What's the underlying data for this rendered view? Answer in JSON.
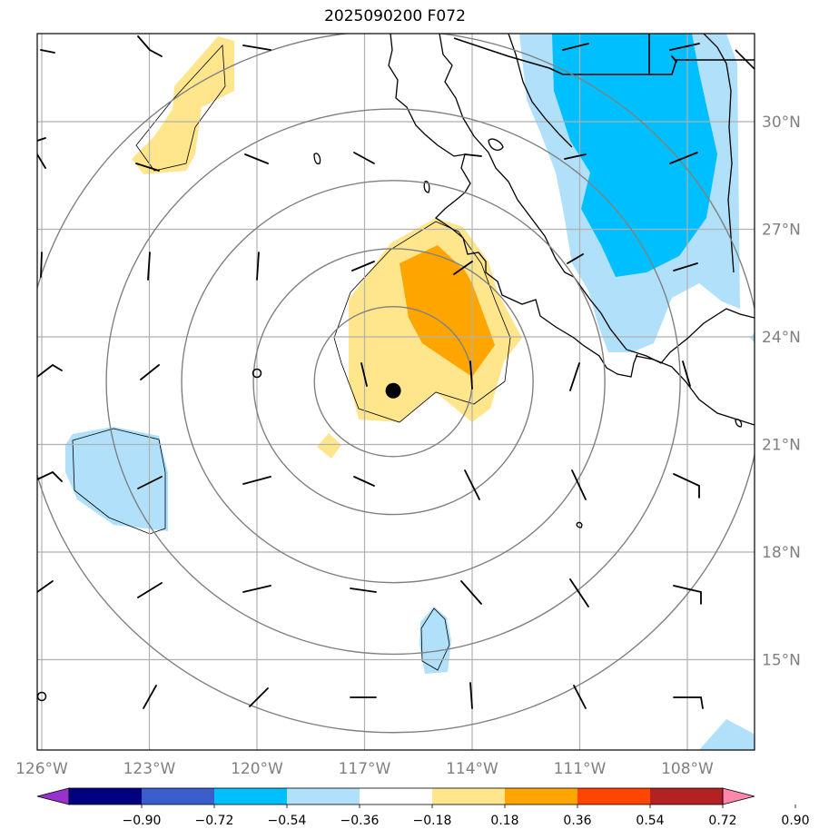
{
  "title": "2025090200 F072",
  "map": {
    "lon_range": [
      -126,
      -106.8
    ],
    "lat_range": [
      12.5,
      32.4
    ],
    "lon_ticks": [
      {
        "value": -126,
        "label": "126°W"
      },
      {
        "value": -123,
        "label": "123°W"
      },
      {
        "value": -120,
        "label": "120°W"
      },
      {
        "value": -117,
        "label": "117°W"
      },
      {
        "value": -114,
        "label": "114°W"
      },
      {
        "value": -111,
        "label": "111°W"
      },
      {
        "value": -108,
        "label": "108°W"
      }
    ],
    "lat_ticks": [
      {
        "value": 30,
        "label": "30°N"
      },
      {
        "value": 27,
        "label": "27°N"
      },
      {
        "value": 24,
        "label": "24°N"
      },
      {
        "value": 21,
        "label": "21°N"
      },
      {
        "value": 18,
        "label": "18°N"
      },
      {
        "value": 15,
        "label": "15°N"
      }
    ],
    "grid_lines": true,
    "storm_center": {
      "lon": -116.2,
      "lat": 22.5
    },
    "range_rings_deg": [
      2.2,
      3.9,
      5.9,
      8.0,
      10.3
    ]
  },
  "colorbar": {
    "labels": [
      "−0.90",
      "−0.72",
      "−0.54",
      "−0.36",
      "−0.18",
      "0.18",
      "0.36",
      "0.54",
      "0.72",
      "0.90"
    ],
    "colors": [
      "#9932cc",
      "#000080",
      "#3a5fcd",
      "#00bfff",
      "#b0e0fa",
      "#ffffff",
      "#ffe68c",
      "#ffa500",
      "#ff4500",
      "#b22222",
      "#ff88aa"
    ]
  }
}
